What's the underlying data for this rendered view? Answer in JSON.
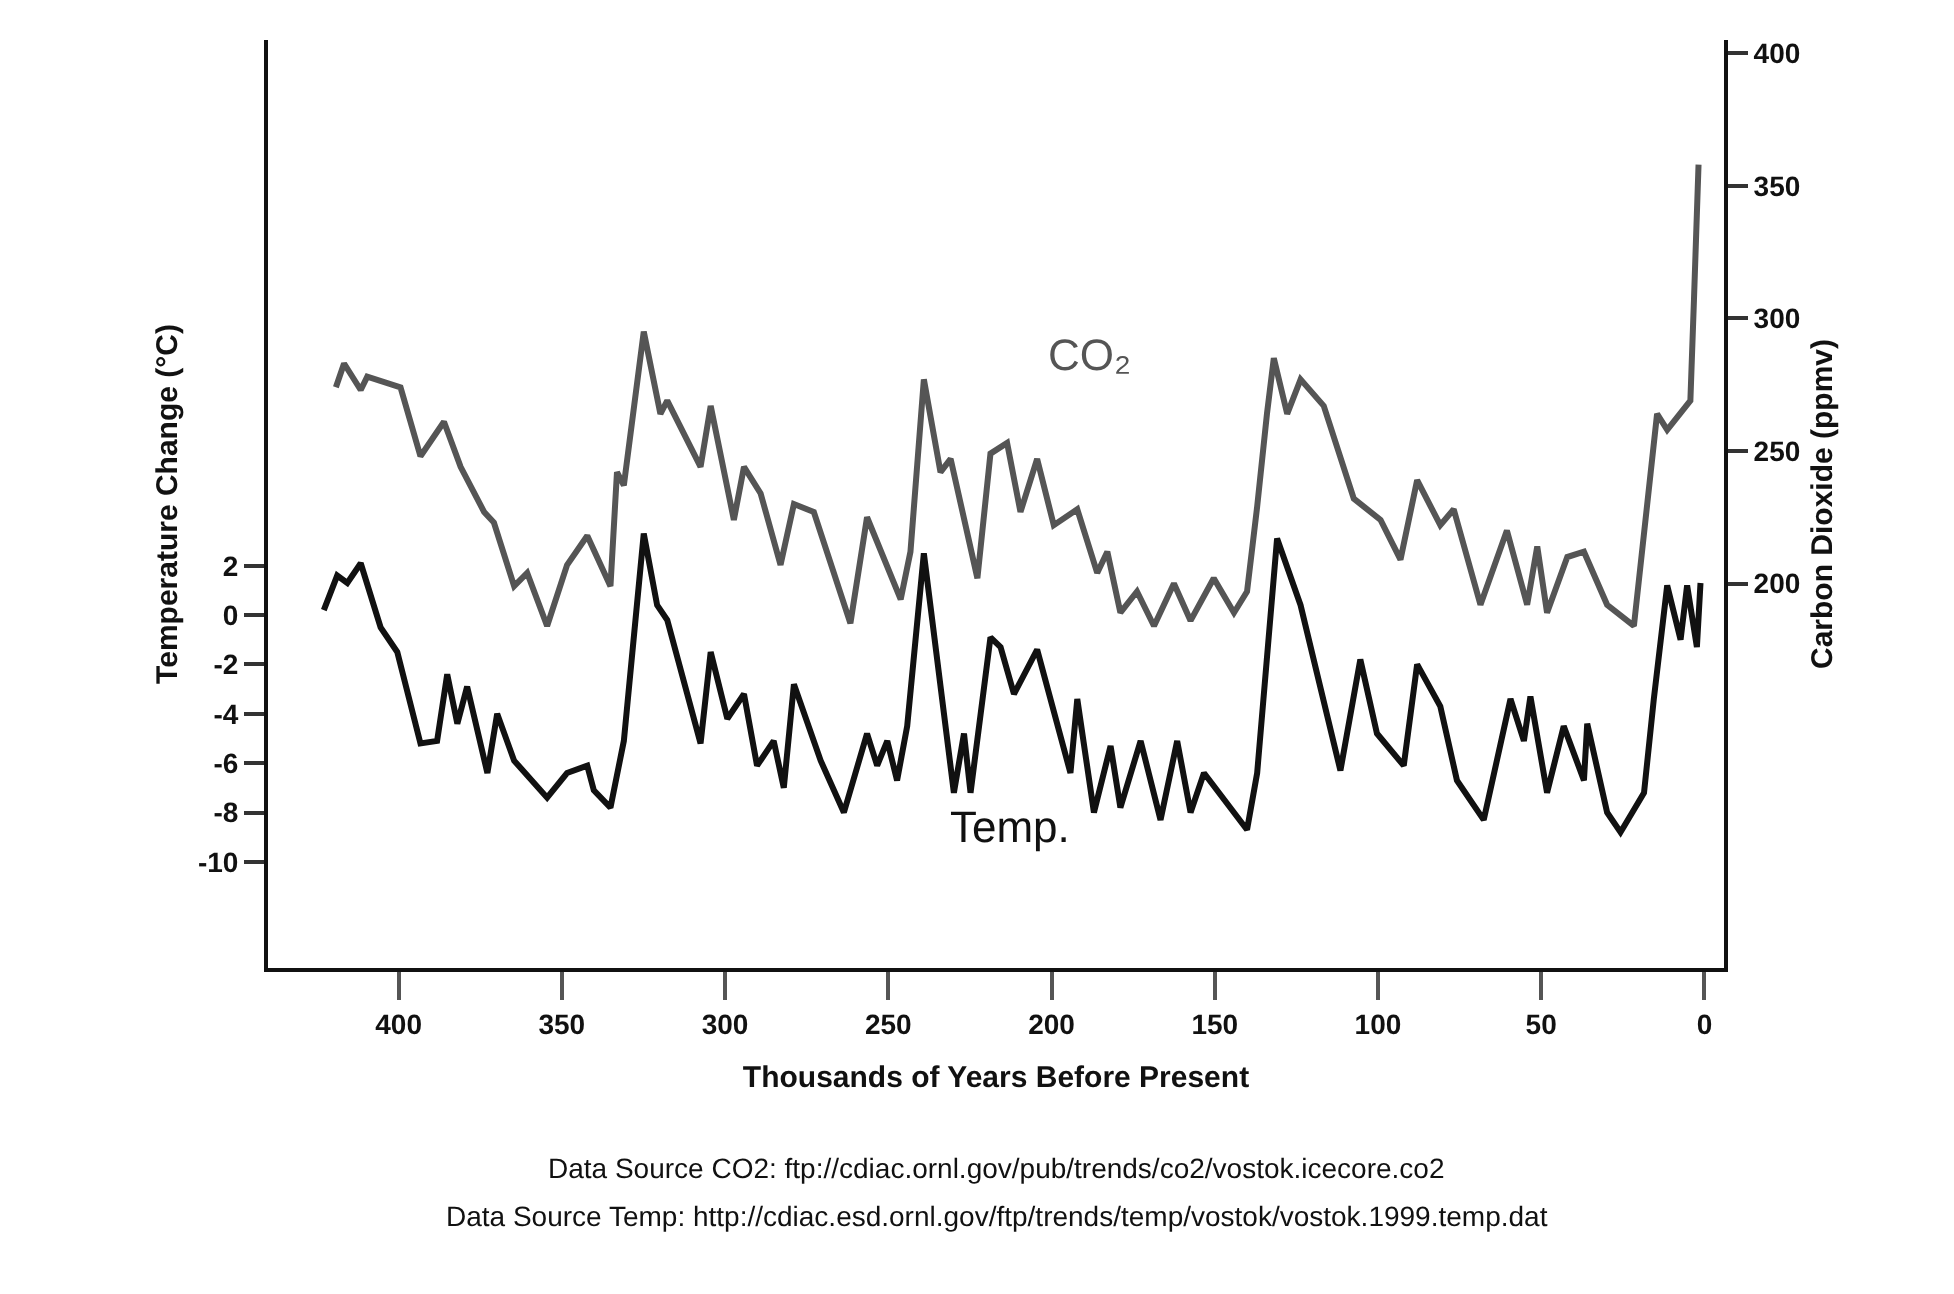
{
  "chart_data": {
    "type": "line",
    "xlabel": "Thousands of Years Before Present",
    "ylabel": "Temperature Change (°C)",
    "y2label": "Carbon Dioxide (ppmv)",
    "xlim": [
      440,
      -6
    ],
    "xticks": [
      400,
      350,
      300,
      250,
      200,
      150,
      100,
      50,
      0
    ],
    "ylim": [
      -14.3,
      23.3
    ],
    "yticks": [
      2,
      0,
      -2,
      -4,
      -6,
      -8,
      -10
    ],
    "y2lim": [
      55,
      405
    ],
    "y2ticks": [
      200,
      250,
      300,
      350,
      400
    ],
    "grid": false,
    "legend": false,
    "marker": "none",
    "line_style": "solid",
    "annotations": [
      "Data Source CO2: ftp://cdiac.ornl.gov/pub/trends/co2/vostok.icecore.co2",
      "Data Source Temp: http://cdiac.esd.ornl.gov/ftp/trends/temp/vostok/vostok.1999.temp.dat"
    ],
    "series": [
      {
        "name": "CO₂",
        "color": "#555555",
        "axis": "y2",
        "x": [
          419.2,
          416.7,
          411.6,
          409.6,
          399.4,
          393.3,
          386.1,
          381,
          373.8,
          370.8,
          364.6,
          360.6,
          354.5,
          348.4,
          342.2,
          335.1,
          333.1,
          331,
          324.9,
          319.8,
          317.7,
          307.5,
          304.4,
          297.3,
          294.2,
          289.1,
          283,
          278.9,
          272.8,
          261.6,
          256.5,
          246.2,
          243.2,
          239.1,
          234,
          230.9,
          222.7,
          218.7,
          213.6,
          209.5,
          204.4,
          199.3,
          192.1,
          186,
          182.9,
          178.9,
          173.8,
          168.6,
          162.5,
          157.4,
          150.3,
          144.1,
          140.1,
          137,
          134,
          131.9,
          127.8,
          123.7,
          116.6,
          107.4,
          99.2,
          93.1,
          88,
          80.9,
          76.8,
          68.6,
          60.5,
          54.3,
          51.2,
          48.2,
          42,
          36.9,
          29.8,
          21.6,
          14.5,
          11.4,
          4.3,
          3.2,
          1.8
        ],
        "values": [
          274,
          283,
          273,
          278,
          274,
          248,
          261,
          244,
          227,
          223,
          199,
          204,
          184,
          207,
          218,
          199,
          242,
          237,
          295,
          264,
          269,
          244,
          267,
          224,
          244,
          234,
          207,
          230,
          227,
          185,
          225,
          194,
          212,
          277,
          242,
          247,
          202,
          249,
          253,
          227,
          247,
          222,
          228,
          204,
          212,
          189,
          197,
          184,
          200,
          186,
          202,
          189,
          197,
          229,
          264,
          285,
          264,
          277,
          267,
          232,
          224,
          209,
          239,
          222,
          228,
          192,
          220,
          192,
          214,
          189,
          210,
          212,
          192,
          184,
          264,
          258,
          269,
          307,
          358
        ]
      },
      {
        "name": "Temp.",
        "color": "#111111",
        "axis": "y",
        "x": [
          422.9,
          418.8,
          415.7,
          411.6,
          405.5,
          400.4,
          393.3,
          388.2,
          385.1,
          382,
          379,
          372.8,
          369.8,
          364.6,
          354.5,
          348.4,
          342.2,
          340.2,
          335.1,
          331,
          324.9,
          320.8,
          317.7,
          307.5,
          304.4,
          299.3,
          294.2,
          290.2,
          285.1,
          282,
          278.9,
          270.7,
          263.6,
          256.5,
          253.4,
          250.3,
          247.3,
          244.2,
          239.1,
          229.9,
          226.8,
          224.8,
          218.7,
          215.6,
          211.5,
          204.4,
          194.2,
          192.1,
          187,
          181.9,
          178.9,
          172.7,
          166.6,
          161.5,
          157.4,
          153.3,
          140.1,
          137,
          130.9,
          123.7,
          111.5,
          105.4,
          100.3,
          92.1,
          88,
          80.9,
          75.8,
          67.6,
          59.4,
          55.3,
          53.3,
          48.2,
          43.1,
          36.9,
          35.9,
          29.8,
          25.7,
          18.5,
          15.5,
          11.4,
          7.3,
          5.3,
          2.3,
          1.2
        ],
        "values": [
          0.2,
          1.6,
          1.3,
          2.1,
          -0.5,
          -1.5,
          -5.2,
          -5.1,
          -2.4,
          -4.4,
          -2.9,
          -6.4,
          -4,
          -5.9,
          -7.4,
          -6.4,
          -6.1,
          -7.1,
          -7.8,
          -5.1,
          3.3,
          0.4,
          -0.2,
          -5.2,
          -1.5,
          -4.2,
          -3.2,
          -6.1,
          -5.1,
          -7,
          -2.8,
          -5.9,
          -8,
          -4.8,
          -6.1,
          -5.1,
          -6.7,
          -4.5,
          2.5,
          -7.2,
          -4.8,
          -7.2,
          -0.9,
          -1.3,
          -3.2,
          -1.4,
          -6.4,
          -3.4,
          -8,
          -5.3,
          -7.8,
          -5.1,
          -8.3,
          -5.1,
          -8,
          -6.4,
          -8.7,
          -6.4,
          3.1,
          0.4,
          -6.3,
          -1.8,
          -4.8,
          -6.1,
          -2,
          -3.7,
          -6.7,
          -8.3,
          -3.4,
          -5.1,
          -3.3,
          -7.2,
          -4.5,
          -6.7,
          -4.4,
          -8,
          -8.8,
          -7.2,
          -3.4,
          1.2,
          -1,
          1.2,
          -1.3,
          1.3
        ]
      }
    ]
  }
}
